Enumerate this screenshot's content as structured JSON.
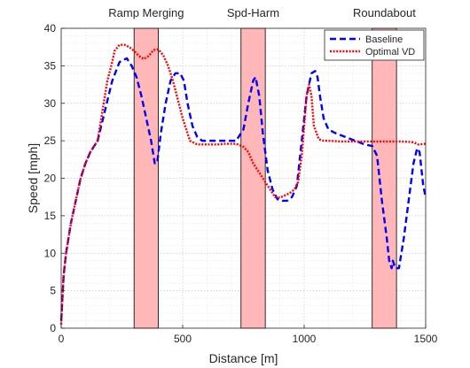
{
  "chart_data": {
    "type": "line",
    "title": "",
    "xlabel": "Distance [m]",
    "ylabel": "Speed [mph]",
    "xlim": [
      0,
      1500
    ],
    "ylim": [
      0,
      40
    ],
    "xticks": [
      0,
      500,
      1000,
      1500
    ],
    "yticks": [
      0,
      5,
      10,
      15,
      20,
      25,
      30,
      35,
      40
    ],
    "grid": "on (major and minor, dotted)",
    "legend_placement": "top-right",
    "regions": [
      {
        "label": "Ramp Merging",
        "x0": 300,
        "x1": 400,
        "color": "#ffb3b3"
      },
      {
        "label": "Spd-Harm",
        "x0": 740,
        "x1": 840,
        "color": "#ffb3b3"
      },
      {
        "label": "Roundabout",
        "x0": 1280,
        "x1": 1380,
        "color": "#ffb3b3"
      }
    ],
    "series": [
      {
        "name": "Baseline",
        "color": "#0000ff",
        "style": "dashed",
        "x": [
          0,
          5,
          10,
          20,
          40,
          60,
          80,
          100,
          120,
          150,
          180,
          210,
          240,
          270,
          290,
          310,
          330,
          350,
          370,
          385,
          395,
          410,
          430,
          450,
          470,
          490,
          505,
          520,
          540,
          560,
          580,
          600,
          640,
          680,
          720,
          750,
          770,
          790,
          800,
          815,
          830,
          850,
          870,
          890,
          910,
          930,
          950,
          970,
          990,
          1010,
          1030,
          1045,
          1055,
          1065,
          1080,
          1100,
          1130,
          1170,
          1210,
          1250,
          1280,
          1300,
          1320,
          1340,
          1350,
          1360,
          1365,
          1375,
          1390,
          1410,
          1430,
          1450,
          1465,
          1475,
          1490,
          1500
        ],
        "y": [
          1,
          4,
          7,
          10,
          14,
          17,
          20,
          22,
          23.5,
          25,
          29,
          33,
          35.5,
          36,
          35,
          33.5,
          31,
          28,
          25,
          22,
          22,
          26,
          30,
          33,
          34,
          34,
          33,
          30,
          27,
          25.5,
          25,
          25,
          25,
          25,
          25,
          26.5,
          30,
          33,
          33.5,
          31,
          26,
          21,
          18.5,
          17.2,
          17,
          17,
          17.5,
          19,
          25,
          31,
          34,
          34.3,
          33.5,
          31,
          28,
          26.5,
          26,
          25.5,
          25,
          24.5,
          24.3,
          23,
          17,
          12,
          9,
          8,
          9,
          8,
          8,
          12,
          17,
          22,
          24,
          23.5,
          19,
          17.5
        ]
      },
      {
        "name": "Optimal VD",
        "color": "#ff0000",
        "style": "dotted",
        "x": [
          0,
          5,
          10,
          20,
          40,
          60,
          80,
          100,
          120,
          150,
          170,
          190,
          210,
          220,
          240,
          260,
          280,
          300,
          320,
          340,
          360,
          380,
          400,
          420,
          440,
          460,
          480,
          500,
          530,
          560,
          600,
          640,
          680,
          720,
          750,
          770,
          790,
          800,
          820,
          840,
          860,
          880,
          900,
          920,
          940,
          960,
          975,
          990,
          1000,
          1010,
          1020,
          1030,
          1040,
          1060,
          1080,
          1100,
          1150,
          1200,
          1250,
          1300,
          1350,
          1400,
          1450,
          1470,
          1500
        ],
        "y": [
          0.5,
          4,
          7,
          10,
          14,
          17,
          20,
          22,
          23.5,
          25,
          29,
          33,
          35.5,
          37,
          37.8,
          37.8,
          37.5,
          37,
          36.3,
          35.9,
          36.3,
          37.1,
          37.2,
          36.4,
          35,
          33,
          30.5,
          28,
          25,
          24.5,
          24.5,
          24.5,
          24.6,
          24.6,
          24.2,
          23.5,
          22,
          21.5,
          20.5,
          19.5,
          18.5,
          17.5,
          17.4,
          17.7,
          18,
          18.5,
          19.5,
          23,
          27,
          31,
          32.5,
          31,
          27,
          25.2,
          25,
          25,
          24.9,
          24.9,
          24.9,
          24.9,
          24.9,
          24.9,
          24.8,
          24.5,
          24.6
        ]
      }
    ]
  }
}
